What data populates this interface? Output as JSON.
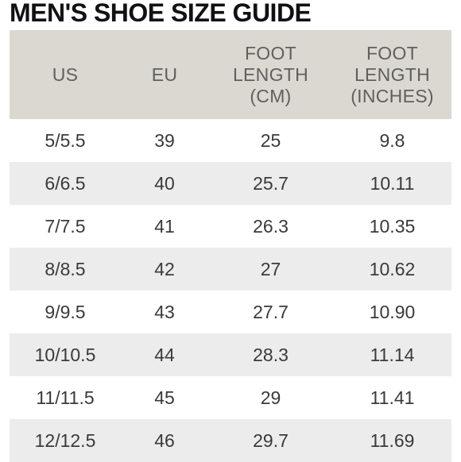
{
  "title": "MEN'S SHOE SIZE GUIDE",
  "table": {
    "headers": [
      [
        "US"
      ],
      [
        "EU"
      ],
      [
        "FOOT",
        "LENGTH",
        "(CM)"
      ],
      [
        "FOOT",
        "LENGTH",
        "(INCHES)"
      ]
    ],
    "rows": [
      [
        "5/5.5",
        "39",
        "25",
        "9.8"
      ],
      [
        "6/6.5",
        "40",
        "25.7",
        "10.11"
      ],
      [
        "7/7.5",
        "41",
        "26.3",
        "10.35"
      ],
      [
        "8/8.5",
        "42",
        "27",
        "10.62"
      ],
      [
        "9/9.5",
        "43",
        "27.7",
        "10.90"
      ],
      [
        "10/10.5",
        "44",
        "28.3",
        "11.14"
      ],
      [
        "11/11.5",
        "45",
        "29",
        "11.41"
      ],
      [
        "12/12.5",
        "46",
        "29.7",
        "11.69"
      ]
    ]
  },
  "colors": {
    "header_bg": "#dad8d0",
    "stripe_bg": "#ececec",
    "title_text": "#111111",
    "header_text": "#5f5f5f",
    "cell_text": "#3a3a3a"
  }
}
